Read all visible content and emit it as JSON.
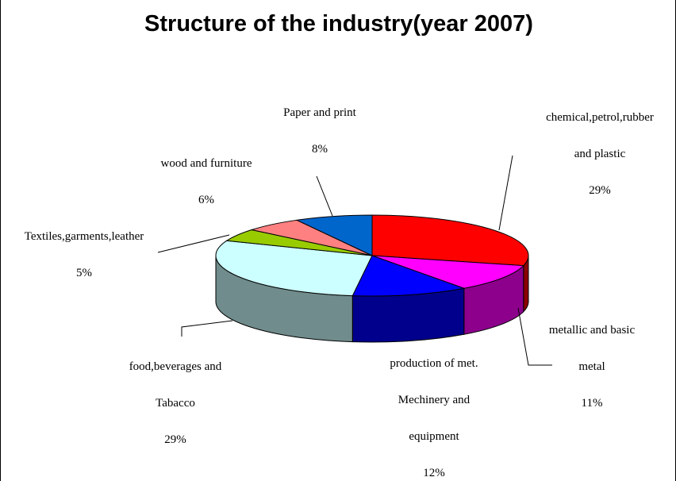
{
  "chart_data": {
    "type": "pie",
    "title": "Structure of the industry(year 2007)",
    "slices": [
      {
        "label_lines": [
          "chemical,petrol,rubber",
          "and plastic"
        ],
        "pct_label": "29%",
        "value": 29,
        "color": "#ff0000"
      },
      {
        "label_lines": [
          "metallic and basic",
          "metal"
        ],
        "pct_label": "11%",
        "value": 11,
        "color": "#ff00ff"
      },
      {
        "label_lines": [
          "production of met.",
          "Mechinery and",
          "equipment"
        ],
        "pct_label": "12%",
        "value": 12,
        "color": "#0000ff"
      },
      {
        "label_lines": [
          "food,beverages and",
          "Tabacco"
        ],
        "pct_label": "29%",
        "value": 29,
        "color": "#ccffff"
      },
      {
        "label_lines": [
          "Textiles,garments,leather"
        ],
        "pct_label": "5%",
        "value": 5,
        "color": "#99cc00"
      },
      {
        "label_lines": [
          "wood and furniture"
        ],
        "pct_label": "6%",
        "value": 6,
        "color": "#ff8080"
      },
      {
        "label_lines": [
          "Paper and print"
        ],
        "pct_label": "8%",
        "value": 8,
        "color": "#0066cc"
      }
    ],
    "legend": "none"
  }
}
